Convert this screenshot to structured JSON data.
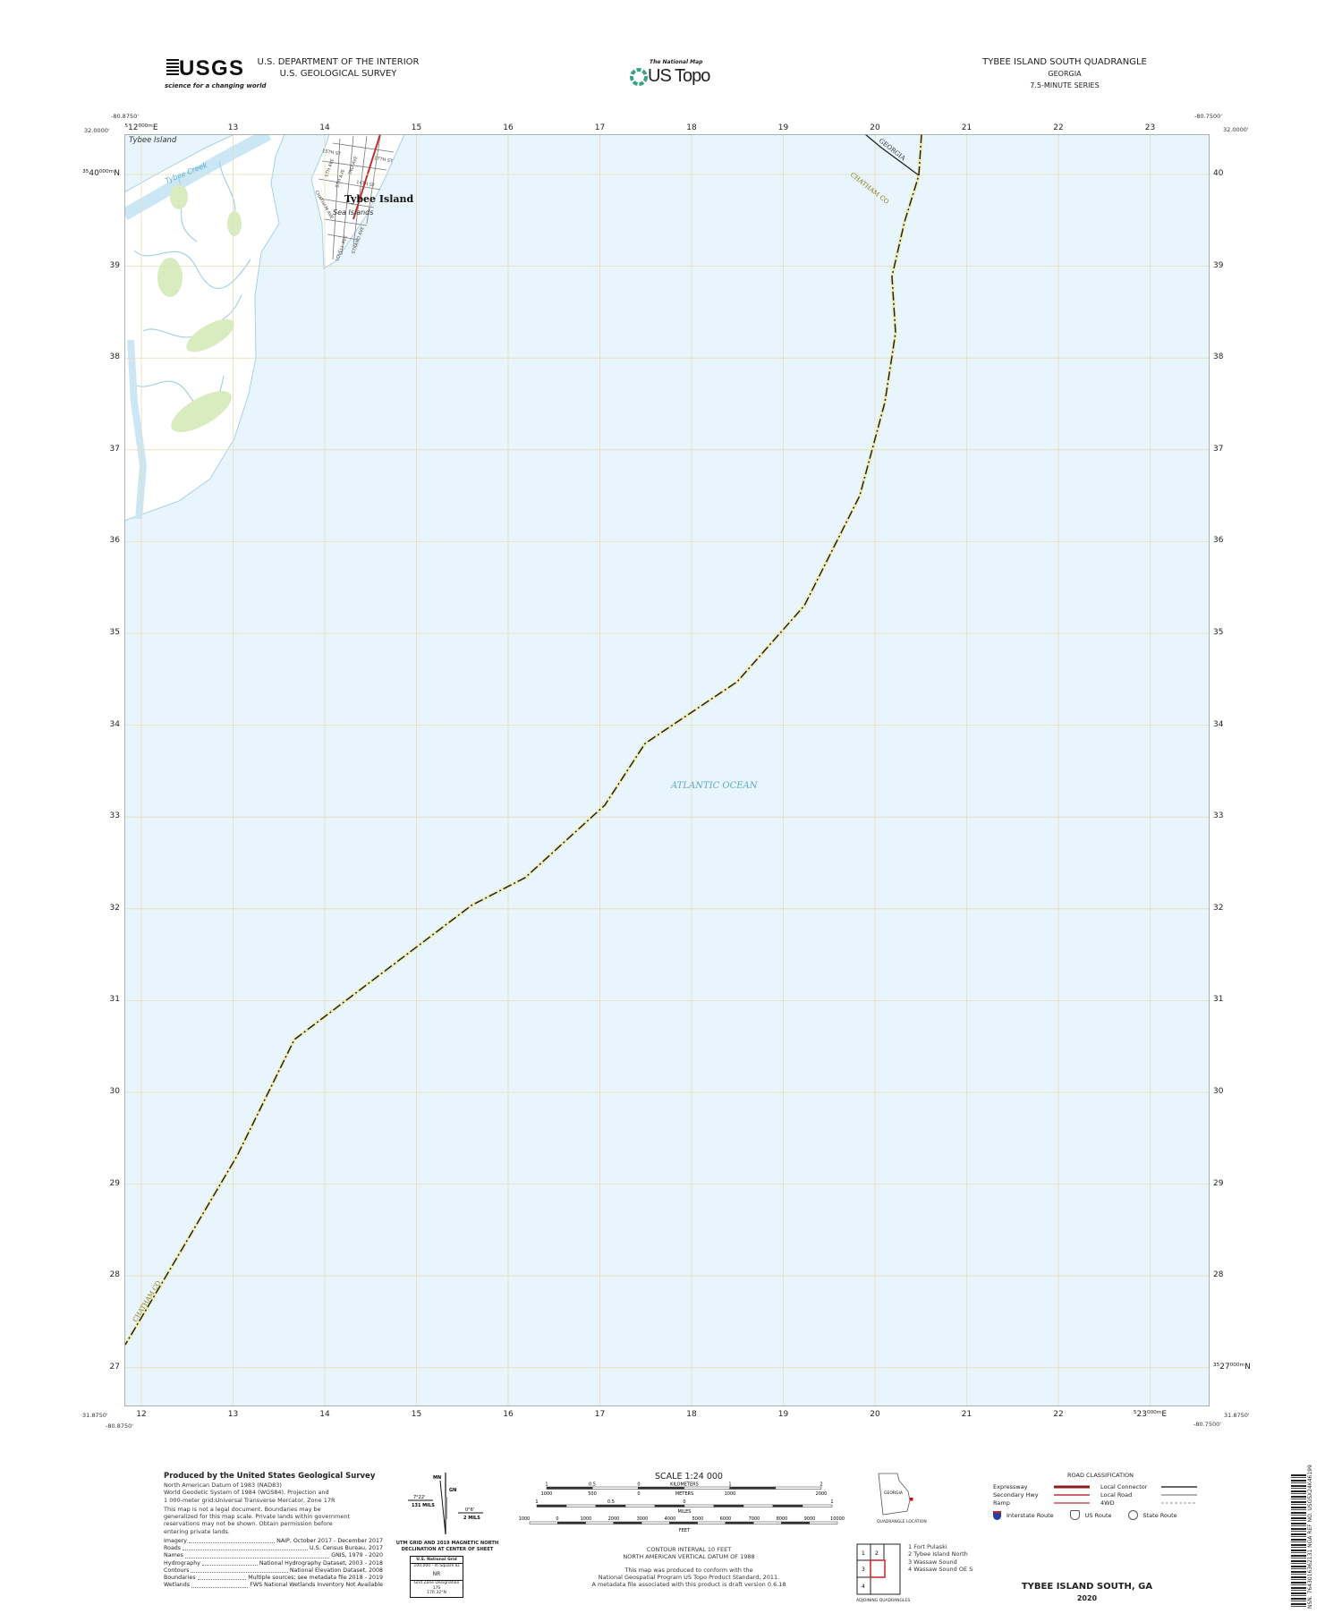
{
  "header": {
    "logo_text": "USGS",
    "logo_tagline": "science for a changing world",
    "agency_line1": "U.S. DEPARTMENT OF THE INTERIOR",
    "agency_line2": "U.S. GEOLOGICAL SURVEY",
    "national_map_label": "The National Map",
    "us_topo_label": "US Topo",
    "quad_title": "TYBEE ISLAND SOUTH QUADRANGLE",
    "state": "GEORGIA",
    "series": "7.5-MINUTE SERIES"
  },
  "map": {
    "corners": {
      "top_left_lon": "-80.8750'",
      "top_left_lat": "32.0000'",
      "top_right_lon": "-80.7500'",
      "top_right_lat": "32.0000'",
      "bottom_left_lat": "31.8750'",
      "bottom_left_lon": "-80.8750'",
      "bottom_right_lon": "-80.7500'",
      "bottom_right_lat": "31.8750'"
    },
    "top_eastings": [
      "⁵12⁰⁰⁰ᵐE",
      "13",
      "14",
      "15",
      "16",
      "17",
      "18",
      "19",
      "20",
      "21",
      "22",
      "23"
    ],
    "bottom_eastings": [
      "12",
      "13",
      "14",
      "15",
      "16",
      "17",
      "18",
      "19",
      "20",
      "21",
      "22",
      "⁵23⁰⁰⁰ᵐE"
    ],
    "left_northings": [
      "³⁵40⁰⁰⁰ᵐN",
      "39",
      "38",
      "37",
      "36",
      "35",
      "34",
      "33",
      "32",
      "31",
      "30",
      "29",
      "28",
      "27"
    ],
    "right_northings": [
      "40",
      "39",
      "38",
      "37",
      "36",
      "35",
      "34",
      "33",
      "32",
      "31",
      "30",
      "29",
      "28",
      "³⁵27⁰⁰⁰ᵐN"
    ],
    "places": {
      "tybee_island_nw": "Tybee Island",
      "tybee_creek": "Tybee Creek",
      "tybee_island_town": "Tybee Island",
      "sea_islands": "Sea Islands",
      "ocean": "ATLANTIC OCEAN",
      "georgia": "GEORGIA",
      "chatham_co_ne": "CHATHAM CO",
      "chatham_co_sw": "CHATHAM CO"
    },
    "streets": [
      "17TH ST",
      "15TH ST",
      "14TH ST",
      "6TH AVE",
      "5TH AVE",
      "2ND AVE",
      "CHATHAM AVE",
      "LOVELL AVE",
      "STRAND AVE"
    ],
    "colors": {
      "water": "#e8f5fc",
      "land": "#ffffff",
      "vegetation": "#d8ecc0",
      "grid": "#e8dcb4",
      "boundary": "#222222",
      "boundary_halo": "#f2ea9a",
      "street": "#777777",
      "highway": "#c03030"
    }
  },
  "footer": {
    "produced_by": "Produced by the United States Geological Survey",
    "datum_lines": [
      "North American Datum of 1983 (NAD83)",
      "World Geodetic System of 1984 (WGS84).  Projection and",
      "1 000-meter grid:Universal Transverse Mercator, Zone 17R"
    ],
    "legal_lines": [
      "This map is not a legal document. Boundaries may be",
      "generalized for this map scale. Private lands within government",
      "reservations may not be shown. Obtain permission before",
      "entering private lands."
    ],
    "credits": [
      {
        "label": "Imagery",
        "value": "NAIP, October 2017 - December 2017"
      },
      {
        "label": "Roads",
        "value": "U.S. Census Bureau, 2017"
      },
      {
        "label": "Names",
        "value": "GNIS, 1979 - 2020"
      },
      {
        "label": "Hydrography",
        "value": "National Hydrography Dataset, 2003 - 2018"
      },
      {
        "label": "Contours",
        "value": "National Elevation Dataset, 2008"
      },
      {
        "label": "Boundaries",
        "value": "Multiple sources; see metadata file 2018 - 2019"
      },
      {
        "label": "Wetlands",
        "value": "FWS National Wetlands Inventory Not Available"
      }
    ],
    "declination": {
      "mn": "MN",
      "gn": "GN",
      "left_angle": "7°22'",
      "left_mils": "131 MILS",
      "right_angle": "0°6'",
      "right_mils": "2 MILS",
      "caption1": "UTM GRID AND 2019 MAGNETIC NORTH",
      "caption2": "DECLINATION AT CENTER OF SHEET"
    },
    "national_grid": {
      "title": "U.S. National Grid",
      "square_label": "100,000 - m Square ID",
      "square_id": "NR",
      "gzd_label": "Grid Zone Designation",
      "gzd_top": "17S",
      "gzd_bottom": "17R",
      "lat": "32°N"
    },
    "scale": {
      "title": "SCALE 1:24 000",
      "km_ticks": [
        "1",
        "0.5",
        "0",
        "1",
        "2"
      ],
      "km_label": "KILOMETERS",
      "m_ticks": [
        "1000",
        "500",
        "0",
        "1000",
        "2000"
      ],
      "m_label": "METERS",
      "mi_ticks": [
        "1",
        "0.5",
        "0",
        "1"
      ],
      "mi_label": "MILES",
      "ft_ticks": [
        "1000",
        "0",
        "1000",
        "2000",
        "3000",
        "4000",
        "5000",
        "6000",
        "7000",
        "8000",
        "9000",
        "10000"
      ],
      "ft_label": "FEET"
    },
    "contour_lines": [
      "CONTOUR INTERVAL 10 FEET",
      "NORTH AMERICAN VERTICAL DATUM OF 1988"
    ],
    "standard_lines": [
      "This map was produced to conform with the",
      "National Geospatial Program US Topo Product Standard, 2011.",
      "A metadata file associated with this product is draft version 0.6.18"
    ],
    "location": {
      "state": "GEORGIA",
      "caption": "QUADRANGLE LOCATION"
    },
    "adjoining": {
      "caption": "ADJOINING QUADRANGLES",
      "cells": [
        "1",
        "2",
        "3",
        "4"
      ],
      "names": [
        "1 Fort Pulaski",
        "2 Tybee Island North",
        "3 Wassaw Sound",
        "4 Wassaw Sound OE S"
      ]
    },
    "road_classification": {
      "title": "ROAD CLASSIFICATION",
      "left": [
        "Expressway",
        "Secondary Hwy",
        "Ramp"
      ],
      "right": [
        "Local Connector",
        "Local Road",
        "4WD"
      ],
      "shields": [
        "Interstate Route",
        "US Route",
        "State Route"
      ]
    },
    "sheet_name": "TYBEE ISLAND SOUTH,  GA",
    "year": "2020",
    "barcode_text": "NSN. 7643016362131  NGA REF NO. USGSX24K46199"
  }
}
